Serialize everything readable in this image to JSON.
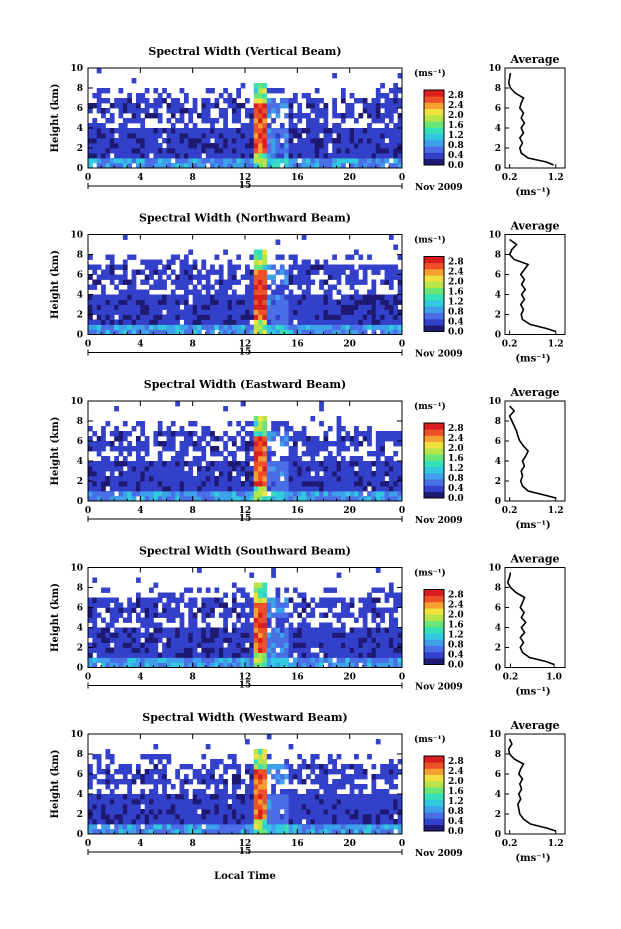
{
  "figure": {
    "xlabel": "Local Time",
    "date_label": "Nov 2009",
    "day_marker": "15",
    "colorbar_unit": "(ms⁻¹)",
    "side_xlabel": "(ms⁻¹)"
  },
  "colors": {
    "colormap": [
      "#1e1a73",
      "#3340c9",
      "#4a6ee6",
      "#3ea0ea",
      "#32c8e0",
      "#36e0b8",
      "#6ae678",
      "#b8e44a",
      "#f0e040",
      "#f5a030",
      "#f05028",
      "#d81e1e"
    ]
  },
  "chart_data": [
    {
      "type": "heatmap",
      "title": "Spectral Width (Vertical Beam)",
      "ylabel": "Height (km)",
      "xlim": [
        0,
        24
      ],
      "ylim": [
        0,
        10
      ],
      "x_ticks": [
        "0",
        "4",
        "8",
        "12",
        "16",
        "20",
        "0"
      ],
      "y_ticks": [
        "0",
        "2",
        "4",
        "6",
        "8",
        "10"
      ],
      "colorbar": {
        "ticks": [
          "0.0",
          "0.4",
          "0.8",
          "1.2",
          "1.6",
          "2.0",
          "2.4",
          "2.8"
        ],
        "range": [
          0,
          3.0
        ]
      },
      "average_profile": {
        "title": "Average",
        "xticks": [
          "0.2",
          "1.2"
        ],
        "xlim": [
          0.1,
          1.4
        ],
        "height": [
          0.3,
          0.6,
          1.0,
          1.5,
          2.0,
          2.5,
          3.0,
          3.5,
          4.0,
          4.5,
          5.0,
          5.5,
          6.0,
          6.5,
          7.0,
          7.5,
          8.0,
          8.5,
          9.0,
          9.5
        ],
        "width": [
          1.15,
          1.0,
          0.6,
          0.45,
          0.42,
          0.48,
          0.42,
          0.5,
          0.45,
          0.52,
          0.45,
          0.5,
          0.42,
          0.45,
          0.5,
          0.32,
          0.22,
          0.18,
          0.2,
          0.22
        ]
      }
    },
    {
      "type": "heatmap",
      "title": "Spectral Width (Northward Beam)",
      "ylabel": "Height (km)",
      "xlim": [
        0,
        24
      ],
      "ylim": [
        0,
        10
      ],
      "x_ticks": [
        "0",
        "4",
        "8",
        "12",
        "16",
        "20",
        "0"
      ],
      "y_ticks": [
        "0",
        "2",
        "4",
        "6",
        "8",
        "10"
      ],
      "colorbar": {
        "ticks": [
          "0.0",
          "0.4",
          "0.8",
          "1.2",
          "1.6",
          "2.0",
          "2.4",
          "2.8"
        ],
        "range": [
          0,
          3.0
        ]
      },
      "average_profile": {
        "title": "Average",
        "xticks": [
          "0.2",
          "1.2"
        ],
        "xlim": [
          0.1,
          1.4
        ],
        "height": [
          0.3,
          0.6,
          1.0,
          1.5,
          2.0,
          2.5,
          3.0,
          3.5,
          4.0,
          4.5,
          5.0,
          5.5,
          6.0,
          6.5,
          7.0,
          7.5,
          8.0,
          8.5,
          9.0,
          9.5
        ],
        "width": [
          1.2,
          1.0,
          0.65,
          0.48,
          0.45,
          0.5,
          0.44,
          0.52,
          0.46,
          0.54,
          0.46,
          0.52,
          0.44,
          0.52,
          0.6,
          0.3,
          0.2,
          0.25,
          0.35,
          0.2
        ]
      }
    },
    {
      "type": "heatmap",
      "title": "Spectral Width (Eastward Beam)",
      "ylabel": "Height (km)",
      "xlim": [
        0,
        24
      ],
      "ylim": [
        0,
        10
      ],
      "x_ticks": [
        "0",
        "4",
        "8",
        "12",
        "16",
        "20",
        "0"
      ],
      "y_ticks": [
        "0",
        "2",
        "4",
        "6",
        "8",
        "10"
      ],
      "colorbar": {
        "ticks": [
          "0.0",
          "0.4",
          "0.8",
          "1.2",
          "1.6",
          "2.0",
          "2.4",
          "2.8"
        ],
        "range": [
          0,
          3.0
        ]
      },
      "average_profile": {
        "title": "Average",
        "xticks": [
          "0.2",
          "1.2"
        ],
        "xlim": [
          0.1,
          1.4
        ],
        "height": [
          0.3,
          0.6,
          1.0,
          1.5,
          2.0,
          2.5,
          3.0,
          3.5,
          4.0,
          4.5,
          5.0,
          5.5,
          6.0,
          6.5,
          7.0,
          7.5,
          8.0,
          8.5,
          9.0,
          9.5
        ],
        "width": [
          1.2,
          0.95,
          0.6,
          0.48,
          0.44,
          0.48,
          0.45,
          0.52,
          0.48,
          0.55,
          0.6,
          0.5,
          0.42,
          0.38,
          0.35,
          0.3,
          0.25,
          0.2,
          0.3,
          0.2
        ]
      }
    },
    {
      "type": "heatmap",
      "title": "Spectral Width (Southward Beam)",
      "ylabel": "Height (km)",
      "xlim": [
        0,
        24
      ],
      "ylim": [
        0,
        10
      ],
      "x_ticks": [
        "0",
        "4",
        "8",
        "12",
        "16",
        "20",
        "0"
      ],
      "y_ticks": [
        "0",
        "2",
        "4",
        "6",
        "8",
        "10"
      ],
      "colorbar": {
        "ticks": [
          "0.0",
          "0.4",
          "0.8",
          "1.2",
          "1.6",
          "2.0",
          "2.4",
          "2.8"
        ],
        "range": [
          0,
          3.0
        ]
      },
      "average_profile": {
        "title": "Average",
        "xticks": [
          "0.2",
          "1.0"
        ],
        "xlim": [
          0.1,
          1.2
        ],
        "height": [
          0.3,
          0.6,
          1.0,
          1.5,
          2.0,
          2.5,
          3.0,
          3.5,
          4.0,
          4.5,
          5.0,
          5.5,
          6.0,
          6.5,
          7.0,
          7.5,
          8.0,
          8.5,
          9.0,
          9.5
        ],
        "width": [
          1.0,
          0.85,
          0.55,
          0.42,
          0.38,
          0.44,
          0.38,
          0.46,
          0.4,
          0.48,
          0.4,
          0.45,
          0.38,
          0.42,
          0.46,
          0.3,
          0.2,
          0.15,
          0.18,
          0.2
        ]
      }
    },
    {
      "type": "heatmap",
      "title": "Spectral Width (Westward Beam)",
      "ylabel": "Height (km)",
      "xlim": [
        0,
        24
      ],
      "ylim": [
        0,
        10
      ],
      "x_ticks": [
        "0",
        "4",
        "8",
        "12",
        "16",
        "20",
        "0"
      ],
      "y_ticks": [
        "0",
        "2",
        "4",
        "6",
        "8",
        "10"
      ],
      "colorbar": {
        "ticks": [
          "0.0",
          "0.4",
          "0.8",
          "1.2",
          "1.6",
          "2.0",
          "2.4",
          "2.8"
        ],
        "range": [
          0,
          3.0
        ]
      },
      "average_profile": {
        "title": "Average",
        "xticks": [
          "0.2",
          "1.2"
        ],
        "xlim": [
          0.1,
          1.4
        ],
        "height": [
          0.3,
          0.6,
          1.0,
          1.5,
          2.0,
          2.5,
          3.0,
          3.5,
          4.0,
          4.5,
          5.0,
          5.5,
          6.0,
          6.5,
          7.0,
          7.5,
          8.0,
          8.5,
          9.0,
          9.5
        ],
        "width": [
          1.2,
          1.0,
          0.65,
          0.5,
          0.42,
          0.4,
          0.38,
          0.44,
          0.4,
          0.46,
          0.42,
          0.48,
          0.4,
          0.44,
          0.5,
          0.3,
          0.2,
          0.18,
          0.25,
          0.2
        ]
      }
    }
  ]
}
